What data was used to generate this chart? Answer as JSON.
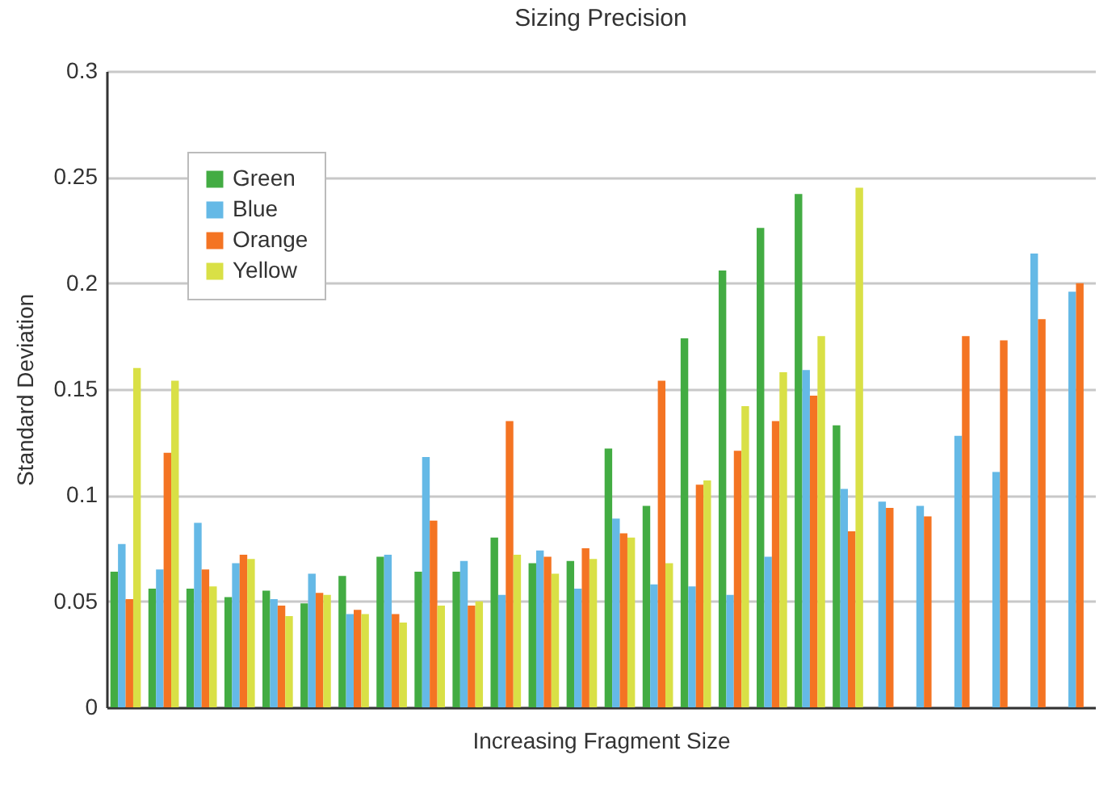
{
  "chart_data": {
    "type": "bar",
    "title": "Sizing Precision",
    "xlabel": "Increasing Fragment Size",
    "ylabel": "Standard Deviation",
    "categories": [
      null,
      null,
      null,
      null,
      null,
      null,
      null,
      null,
      null,
      null,
      null,
      null,
      null,
      null,
      null,
      null,
      null,
      null,
      null,
      null,
      null,
      null,
      null,
      null,
      null,
      null
    ],
    "series": [
      {
        "name": "Green",
        "color": "#43ac43",
        "values": [
          0.064,
          0.056,
          0.056,
          0.052,
          0.055,
          0.049,
          0.062,
          0.071,
          0.064,
          0.064,
          0.08,
          0.068,
          0.069,
          0.122,
          0.095,
          0.174,
          0.206,
          0.226,
          0.242,
          0.133,
          null,
          null,
          null,
          null,
          null,
          null
        ]
      },
      {
        "name": "Blue",
        "color": "#65b9e6",
        "values": [
          0.077,
          0.065,
          0.087,
          0.068,
          0.051,
          0.063,
          0.044,
          0.072,
          0.118,
          0.069,
          0.053,
          0.074,
          0.056,
          0.089,
          0.058,
          0.057,
          0.053,
          0.071,
          0.159,
          0.103,
          0.097,
          0.095,
          0.128,
          0.111,
          0.214,
          0.196
        ]
      },
      {
        "name": "Orange",
        "color": "#f47423",
        "values": [
          0.051,
          0.12,
          0.065,
          0.072,
          0.048,
          0.054,
          0.046,
          0.044,
          0.088,
          0.048,
          0.135,
          0.071,
          0.075,
          0.082,
          0.154,
          0.105,
          0.121,
          0.135,
          0.147,
          0.083,
          0.094,
          0.09,
          0.175,
          0.173,
          0.183,
          0.2
        ]
      },
      {
        "name": "Yellow",
        "color": "#d9e046",
        "values": [
          0.16,
          0.154,
          0.057,
          0.07,
          0.043,
          0.053,
          0.044,
          0.04,
          0.048,
          0.05,
          0.072,
          0.063,
          0.07,
          0.08,
          0.068,
          0.107,
          0.142,
          0.158,
          0.175,
          0.245,
          null,
          null,
          null,
          null,
          null,
          null
        ]
      }
    ],
    "ylim": [
      0,
      0.3
    ],
    "yticks": [
      0,
      0.05,
      0.1,
      0.15,
      0.2,
      0.25,
      0.3
    ],
    "grid": "y",
    "legend": "top left",
    "tick_labels": "y"
  }
}
